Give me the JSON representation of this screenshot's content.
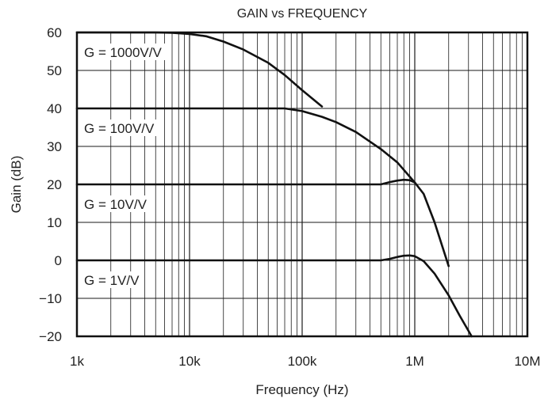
{
  "chart_data": {
    "type": "line",
    "title": "GAIN vs FREQUENCY",
    "xlabel": "Frequency (Hz)",
    "ylabel": "Gain (dB)",
    "x_scale": "log",
    "xlim": [
      1000,
      10000000
    ],
    "ylim": [
      -20,
      60
    ],
    "grid": true,
    "x_ticks": [
      {
        "value": 1000,
        "label": "1k"
      },
      {
        "value": 10000,
        "label": "10k"
      },
      {
        "value": 100000,
        "label": "100k"
      },
      {
        "value": 1000000,
        "label": "1M"
      },
      {
        "value": 10000000,
        "label": "10M"
      }
    ],
    "y_ticks": [
      {
        "value": 60,
        "label": "60"
      },
      {
        "value": 50,
        "label": "50"
      },
      {
        "value": 40,
        "label": "40"
      },
      {
        "value": 30,
        "label": "30"
      },
      {
        "value": 20,
        "label": "20"
      },
      {
        "value": 10,
        "label": "10"
      },
      {
        "value": 0,
        "label": "0"
      },
      {
        "value": -10,
        "label": "−10"
      },
      {
        "value": -20,
        "label": "−20"
      }
    ],
    "series": [
      {
        "name": "G = 1000V/V",
        "x": [
          1000,
          5000,
          7000,
          10000,
          14000,
          20000,
          30000,
          50000,
          70000,
          100000,
          150000
        ],
        "y": [
          60,
          60,
          59.9,
          59.6,
          59,
          57.6,
          55.5,
          52,
          48.8,
          44.8,
          40.5
        ]
      },
      {
        "name": "G = 100V/V",
        "x": [
          1000,
          50000,
          70000,
          100000,
          150000,
          200000,
          300000,
          500000,
          700000,
          1000000
        ],
        "y": [
          40,
          40,
          40,
          39.3,
          37.8,
          36.4,
          33.8,
          29.3,
          25.8,
          20.5
        ]
      },
      {
        "name": "G = 10V/V",
        "x": [
          1000,
          500000,
          600000,
          700000,
          800000,
          900000,
          1000000,
          1200000,
          1500000,
          2000000
        ],
        "y": [
          20,
          20,
          20.6,
          21,
          21.2,
          21.1,
          20.5,
          17.5,
          10,
          -1.5
        ]
      },
      {
        "name": "G = 1V/V",
        "x": [
          1000,
          500000,
          600000,
          700000,
          800000,
          900000,
          1000000,
          1200000,
          1500000,
          2000000,
          2500000,
          3200000
        ],
        "y": [
          0,
          0,
          0.4,
          0.9,
          1.2,
          1.3,
          1.1,
          -0.2,
          -3.5,
          -9.2,
          -14.5,
          -20
        ]
      }
    ]
  }
}
